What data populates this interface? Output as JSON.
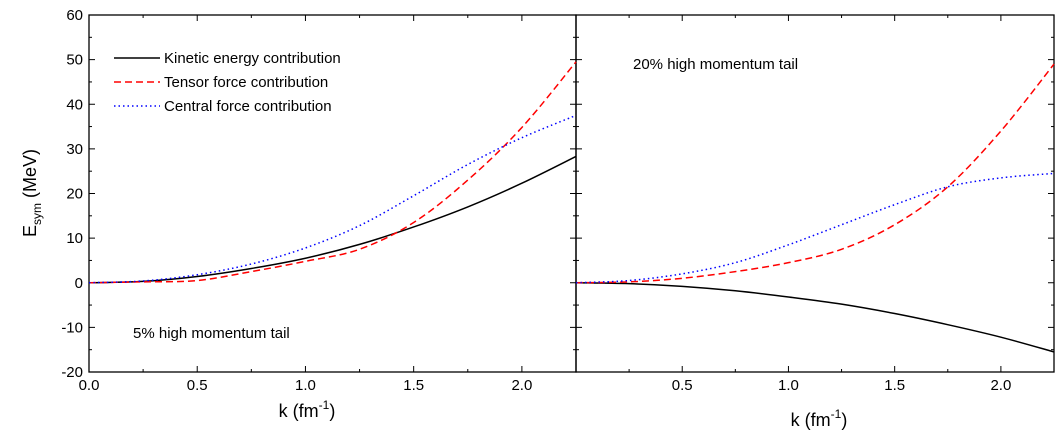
{
  "chart_data": [
    {
      "type": "line",
      "panel": "left",
      "annotation": "5% high momentum tail",
      "xlabel": "k (fm-1)",
      "ylabel": "Esym (MeV)",
      "xlim": [
        0.0,
        2.25
      ],
      "ylim": [
        -20,
        60
      ],
      "xticks": [
        "0.0",
        "0.5",
        "1.0",
        "1.5",
        "2.0"
      ],
      "yticks": [
        "-20",
        "-10",
        "0",
        "10",
        "20",
        "30",
        "40",
        "50",
        "60"
      ],
      "grid": false,
      "legend_position": "top-left",
      "series": [
        {
          "name": "Kinetic energy contribution",
          "style": "solid",
          "color": "#000000",
          "x": [
            0,
            0.25,
            0.5,
            0.75,
            1.0,
            1.25,
            1.5,
            1.75,
            2.0,
            2.25
          ],
          "y": [
            0,
            0.3,
            1.4,
            3.2,
            5.5,
            8.6,
            12.5,
            17.0,
            22.3,
            28.3
          ]
        },
        {
          "name": "Tensor force contribution",
          "style": "dashed",
          "color": "#ff0000",
          "x": [
            0,
            0.25,
            0.5,
            0.75,
            1.0,
            1.25,
            1.5,
            1.75,
            2.0,
            2.25
          ],
          "y": [
            0,
            0.2,
            0.5,
            2.5,
            4.8,
            7.5,
            13.5,
            23.0,
            34.8,
            49.5
          ]
        },
        {
          "name": "Central force contribution",
          "style": "dotted",
          "color": "#0000ff",
          "x": [
            0,
            0.25,
            0.5,
            0.75,
            1.0,
            1.25,
            1.5,
            1.75,
            2.0,
            2.25
          ],
          "y": [
            0,
            0.4,
            1.8,
            4.2,
            7.8,
            12.8,
            19.5,
            26.5,
            32.5,
            37.5
          ]
        }
      ]
    },
    {
      "type": "line",
      "panel": "right",
      "annotation": "20% high momentum tail",
      "xlabel": "k (fm-1)",
      "ylabel": "",
      "xlim": [
        0.0,
        2.25
      ],
      "ylim": [
        -20,
        60
      ],
      "xticks": [
        "0.5",
        "1.0",
        "1.5",
        "2.0"
      ],
      "yticks": [],
      "grid": false,
      "series": [
        {
          "name": "Kinetic energy contribution",
          "style": "solid",
          "color": "#000000",
          "x": [
            0,
            0.25,
            0.5,
            0.75,
            1.0,
            1.25,
            1.5,
            1.75,
            2.0,
            2.25
          ],
          "y": [
            0,
            -0.2,
            -0.8,
            -1.8,
            -3.2,
            -4.8,
            -6.9,
            -9.4,
            -12.2,
            -15.5
          ]
        },
        {
          "name": "Tensor force contribution",
          "style": "dashed",
          "color": "#ff0000",
          "x": [
            0,
            0.25,
            0.5,
            0.75,
            1.0,
            1.25,
            1.5,
            1.75,
            2.0,
            2.25
          ],
          "y": [
            0,
            0.2,
            1.0,
            2.5,
            4.5,
            7.5,
            13.0,
            21.5,
            34.0,
            49.0
          ]
        },
        {
          "name": "Central force contribution",
          "style": "dotted",
          "color": "#0000ff",
          "x": [
            0,
            0.25,
            0.5,
            0.75,
            1.0,
            1.25,
            1.5,
            1.75,
            2.0,
            2.25
          ],
          "y": [
            0,
            0.5,
            2.0,
            4.5,
            8.5,
            13.0,
            17.5,
            21.5,
            23.5,
            24.5
          ]
        }
      ]
    }
  ]
}
